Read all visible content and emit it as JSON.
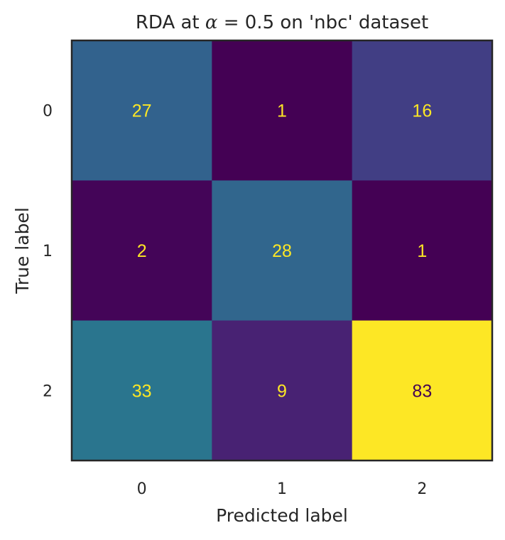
{
  "chart_data": {
    "type": "heatmap",
    "title": "RDA at α = 0.5 on 'nbc' dataset",
    "title_prefix": "RDA at ",
    "title_symbol": "α",
    "title_suffix": " = 0.5 on 'nbc' dataset",
    "xlabel": "Predicted label",
    "ylabel": "True label",
    "x_categories": [
      "0",
      "1",
      "2"
    ],
    "y_categories": [
      "0",
      "1",
      "2"
    ],
    "values": [
      [
        27,
        1,
        16
      ],
      [
        2,
        28,
        1
      ],
      [
        33,
        9,
        83
      ]
    ],
    "colormap": "viridis",
    "vmin": 1,
    "vmax": 83,
    "grid": false,
    "colorbar": false
  }
}
